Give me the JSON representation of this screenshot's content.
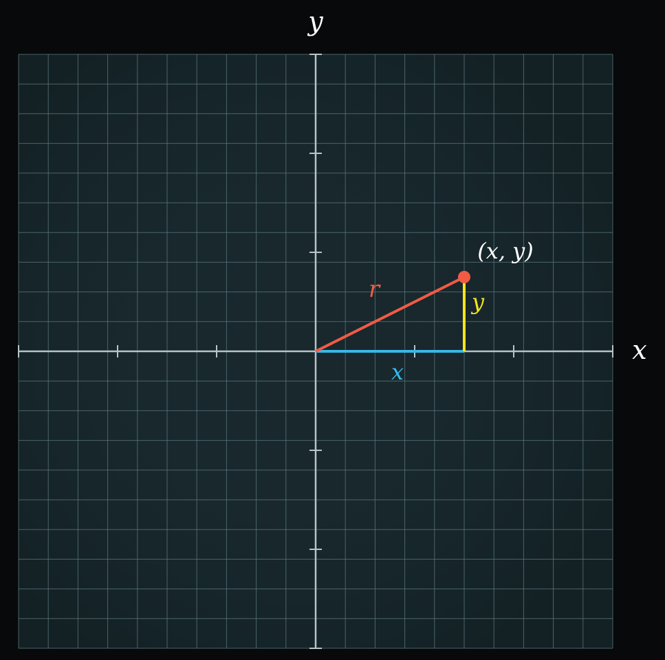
{
  "axes": {
    "x_label": "x",
    "y_label": "y",
    "x_range": [
      -3,
      3
    ],
    "y_range": [
      -3,
      3
    ],
    "major_tick_step": 1,
    "grid_step": 0.3,
    "grid": true
  },
  "point": {
    "x": 1.5,
    "y": 0.75,
    "label": "(x, y)"
  },
  "segments": {
    "radius_label": "r",
    "horizontal_label": "x",
    "vertical_label": "y"
  },
  "colors": {
    "background": "#07090a",
    "plane": "#18282d",
    "grid_line": "#5f7a80",
    "axis": "#b8c4c6",
    "radius": "#ef5b45",
    "horizontal": "#38b8ea",
    "vertical": "#f7e51b",
    "point": "#ef5b45",
    "text": "#ffffff"
  }
}
